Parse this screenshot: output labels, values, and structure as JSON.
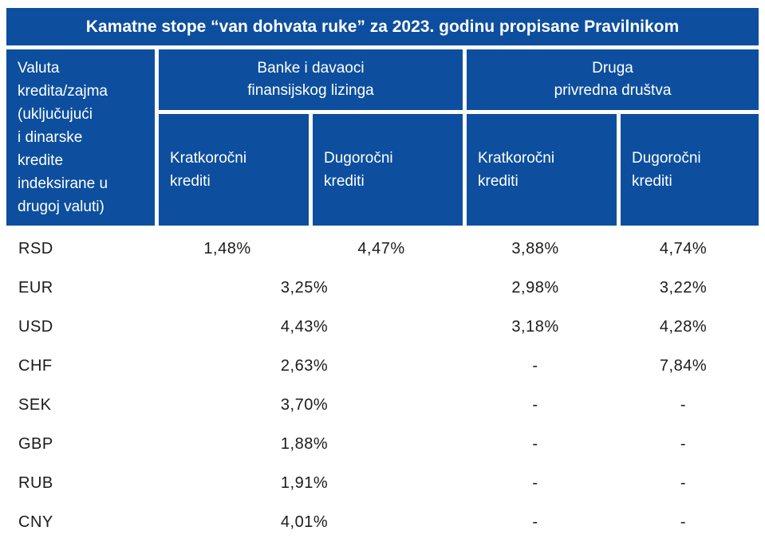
{
  "title": "Kamatne stope “van dohvata ruke” za 2023. godinu propisane Pravilnikom",
  "colors": {
    "header_blue": "#0d4f9e",
    "header_text": "#ffffff",
    "body_text": "#1b1b1b"
  },
  "header": {
    "currency_column": "Valuta\nkredita/zajma\n(uključujući\ni dinarske\nkredite\nindeksirane u\ndrugoj valuti)",
    "group_banks": "Banke i davaoci\nfinansijskog lizinga",
    "group_other": "Druga\nprivredna društva",
    "sub_banks_short": "Kratkoročni\nkrediti",
    "sub_banks_long": "Dugoročni\nkrediti",
    "sub_other_short": "Kratkoročni\nkrediti",
    "sub_other_long": "Dugoročni\nkrediti"
  },
  "chart_data": {
    "type": "table",
    "title": "Kamatne stope “van dohvata ruke” za 2023. godinu propisane Pravilnikom",
    "row_header_label": "Valuta kredita/zajma (uključujući i dinarske kredite indeksirane u drugoj valuti)",
    "column_groups": [
      {
        "label": "Banke i davaoci finansijskog lizinga",
        "columns": [
          "Kratkoročni krediti",
          "Dugoročni krediti"
        ]
      },
      {
        "label": "Druga privredna društva",
        "columns": [
          "Kratkoročni krediti",
          "Dugoročni krediti"
        ]
      }
    ],
    "rows": [
      {
        "currency": "RSD",
        "merged_banks_value": false,
        "cells": [
          "1,48%",
          "4,47%",
          "3,88%",
          "4,74%"
        ]
      },
      {
        "currency": "EUR",
        "merged_banks_value": true,
        "cells": [
          "3,25%",
          "2,98%",
          "3,22%"
        ]
      },
      {
        "currency": "USD",
        "merged_banks_value": true,
        "cells": [
          "4,43%",
          "3,18%",
          "4,28%"
        ]
      },
      {
        "currency": "CHF",
        "merged_banks_value": true,
        "cells": [
          "2,63%",
          "-",
          "7,84%"
        ]
      },
      {
        "currency": "SEK",
        "merged_banks_value": true,
        "cells": [
          "3,70%",
          "-",
          "-"
        ]
      },
      {
        "currency": "GBP",
        "merged_banks_value": true,
        "cells": [
          "1,88%",
          "-",
          "-"
        ]
      },
      {
        "currency": "RUB",
        "merged_banks_value": true,
        "cells": [
          "1,91%",
          "-",
          "-"
        ]
      },
      {
        "currency": "CNY",
        "merged_banks_value": true,
        "cells": [
          "4,01%",
          "-",
          "-"
        ]
      }
    ]
  }
}
